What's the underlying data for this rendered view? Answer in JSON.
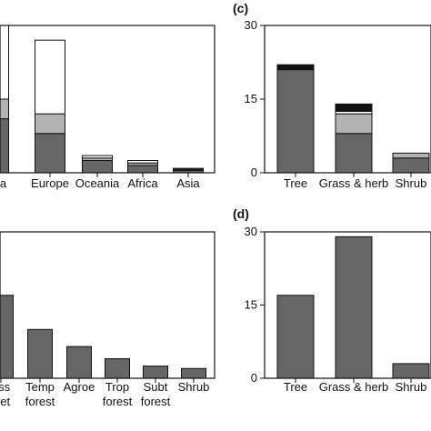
{
  "chart_data": [
    {
      "type": "bar",
      "panel_label": "",
      "stacked": true,
      "categories": [
        "erica",
        "Europe",
        "Oceania",
        "Africa",
        "Asia"
      ],
      "series": [
        {
          "color": "#666666",
          "values": [
            11,
            8,
            2.5,
            1.5,
            0.5
          ]
        },
        {
          "color": "#b3b3b3",
          "values": [
            4,
            4,
            0.5,
            0.5,
            0.2
          ]
        },
        {
          "color": "#ffffff",
          "values": [
            15,
            15,
            0.5,
            0.5,
            0.2
          ]
        }
      ],
      "ylim": [
        0,
        30
      ],
      "yticks": []
    },
    {
      "type": "bar",
      "panel_label": "(c)",
      "stacked": true,
      "categories": [
        "Tree",
        "Grass & herb",
        "Shrub"
      ],
      "series": [
        {
          "color": "#666666",
          "values": [
            21,
            8,
            3
          ]
        },
        {
          "color": "#b3b3b3",
          "values": [
            0,
            4,
            1
          ]
        },
        {
          "color": "#ffffff",
          "values": [
            0,
            0.5,
            0
          ]
        },
        {
          "color": "#111111",
          "values": [
            1,
            1.5,
            0
          ]
        }
      ],
      "ylim": [
        0,
        30
      ],
      "yticks": [
        "0",
        "15",
        "30"
      ]
    },
    {
      "type": "bar",
      "panel_label": "",
      "stacked": false,
      "categories": [
        "ass\nwet",
        "Temp\nforest",
        "Agroe",
        "Trop\nforest",
        "Subt\nforest",
        "Shrub"
      ],
      "series": [
        {
          "color": "#666666",
          "values": [
            17,
            10,
            6.5,
            4,
            2.5,
            2
          ]
        }
      ],
      "ylim": [
        0,
        30
      ],
      "yticks": []
    },
    {
      "type": "bar",
      "panel_label": "(d)",
      "stacked": false,
      "categories": [
        "Tree",
        "Grass & herb",
        "Shrub"
      ],
      "series": [
        {
          "color": "#666666",
          "values": [
            17,
            29,
            3
          ]
        }
      ],
      "ylim": [
        0,
        30
      ],
      "yticks": [
        "0",
        "15",
        "30"
      ]
    }
  ]
}
